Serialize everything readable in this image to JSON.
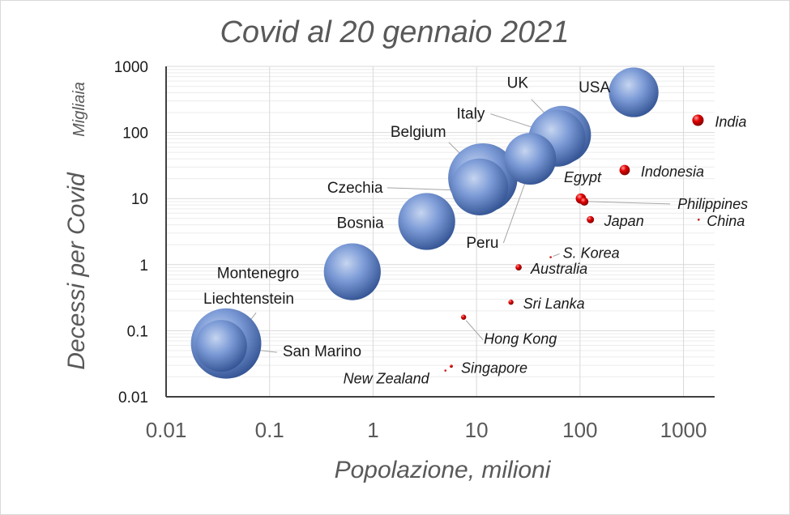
{
  "chart_data": {
    "type": "scatter",
    "subtype": "bubble",
    "title": "Covid al 20 gennaio 2021",
    "xlabel": "Popolazione, milioni",
    "ylabel": "Decessi per Covid",
    "ylabel_unit": "Migliaia",
    "x_scale": "log",
    "y_scale": "log",
    "xlim": [
      0.01,
      2000
    ],
    "ylim": [
      0.01,
      1000
    ],
    "x_ticks": [
      "0.01",
      "0.1",
      "1",
      "10",
      "100",
      "1000"
    ],
    "y_ticks": [
      "0.01",
      "0.1",
      "1",
      "10",
      "100",
      "1000"
    ],
    "grid": true,
    "legend": "none",
    "colors": {
      "blue_series": "#5b80c4",
      "red_series": "#d40000",
      "axis": "#404040",
      "grid": "#d9d9d9"
    },
    "points": [
      {
        "name": "USA",
        "x": 330,
        "y": 405,
        "color": "blue",
        "size": 0.48
      },
      {
        "name": "UK",
        "x": 67,
        "y": 92,
        "color": "blue",
        "size": 0.56
      },
      {
        "name": "Italy",
        "x": 60,
        "y": 82,
        "color": "blue",
        "size": 0.55
      },
      {
        "name": "Belgium",
        "x": 11.5,
        "y": 20.5,
        "color": "blue",
        "size": 0.67
      },
      {
        "name": "Czechia",
        "x": 10.7,
        "y": 15,
        "color": "blue",
        "size": 0.55
      },
      {
        "name": "Peru",
        "x": 33,
        "y": 40,
        "color": "blue",
        "size": 0.5
      },
      {
        "name": "Bosnia",
        "x": 3.3,
        "y": 4.5,
        "color": "blue",
        "size": 0.55
      },
      {
        "name": "Montenegro",
        "x": 0.63,
        "y": 0.78,
        "color": "blue",
        "size": 0.55
      },
      {
        "name": "Liechtenstein",
        "x": 0.038,
        "y": 0.064,
        "color": "blue",
        "size": 0.68
      },
      {
        "name": "San Marino",
        "x": 0.034,
        "y": 0.059,
        "color": "blue",
        "size": 0.5
      },
      {
        "name": "India",
        "x": 1380,
        "y": 153,
        "color": "red",
        "size": 0.11
      },
      {
        "name": "Indonesia",
        "x": 270,
        "y": 27,
        "color": "red",
        "size": 0.1
      },
      {
        "name": "Egypt",
        "x": 102,
        "y": 10,
        "color": "red",
        "size": 0.1
      },
      {
        "name": "Philippines",
        "x": 110,
        "y": 9,
        "color": "red",
        "size": 0.08
      },
      {
        "name": "Japan",
        "x": 126,
        "y": 4.8,
        "color": "red",
        "size": 0.07
      },
      {
        "name": "China",
        "x": 1400,
        "y": 4.8,
        "color": "red",
        "size": 0.01
      },
      {
        "name": "S. Korea",
        "x": 52,
        "y": 1.3,
        "color": "red",
        "size": 0.01
      },
      {
        "name": "Australia",
        "x": 25.5,
        "y": 0.91,
        "color": "red",
        "size": 0.06
      },
      {
        "name": "Sri Lanka",
        "x": 21.5,
        "y": 0.27,
        "color": "red",
        "size": 0.05
      },
      {
        "name": "Hong Kong",
        "x": 7.5,
        "y": 0.16,
        "color": "red",
        "size": 0.05
      },
      {
        "name": "Singapore",
        "x": 5.7,
        "y": 0.029,
        "color": "red",
        "size": 0.03
      },
      {
        "name": "New Zealand",
        "x": 5.0,
        "y": 0.025,
        "color": "red",
        "size": 0.02
      }
    ]
  }
}
